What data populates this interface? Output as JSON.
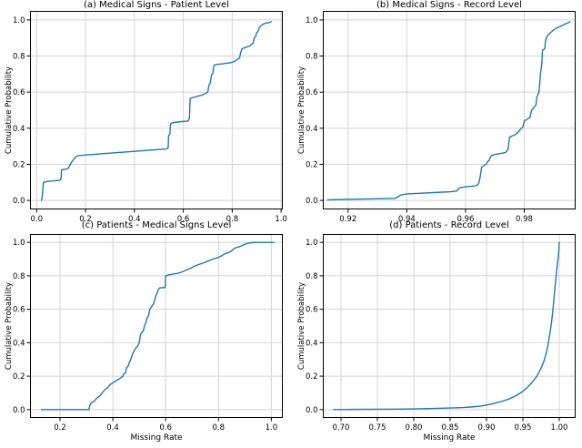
{
  "figure": {
    "background": "#ffffff",
    "line_color": "#1f77b4",
    "grid_color": "#d4d4d4",
    "spine_color": "#000000",
    "text_color": "#000000"
  },
  "chart_data": [
    {
      "id": "a",
      "type": "line",
      "title": "(a) Medical Signs - Patient Level",
      "xlabel": "",
      "ylabel": "Cumulative Probability",
      "grid": true,
      "legend": "none",
      "xlim": [
        -0.027,
        1.007
      ],
      "ylim": [
        -0.05,
        1.05
      ],
      "xtick_values": [
        0.0,
        0.2,
        0.4,
        0.6,
        0.8,
        1.0
      ],
      "xtick_labels": [
        "0.0",
        "0.2",
        "0.4",
        "0.6",
        "0.8",
        "1.0"
      ],
      "ytick_values": [
        0.0,
        0.2,
        0.4,
        0.6,
        0.8,
        1.0
      ],
      "ytick_labels": [
        "0.0",
        "0.2",
        "0.4",
        "0.6",
        "0.8",
        "1.0"
      ],
      "points": [
        [
          0.02,
          0.0
        ],
        [
          0.022,
          0.01
        ],
        [
          0.025,
          0.055
        ],
        [
          0.028,
          0.1
        ],
        [
          0.04,
          0.105
        ],
        [
          0.07,
          0.108
        ],
        [
          0.095,
          0.112
        ],
        [
          0.1,
          0.12
        ],
        [
          0.102,
          0.17
        ],
        [
          0.115,
          0.172
        ],
        [
          0.125,
          0.175
        ],
        [
          0.13,
          0.18
        ],
        [
          0.14,
          0.205
        ],
        [
          0.15,
          0.225
        ],
        [
          0.16,
          0.24
        ],
        [
          0.17,
          0.248
        ],
        [
          0.2,
          0.252
        ],
        [
          0.25,
          0.257
        ],
        [
          0.3,
          0.262
        ],
        [
          0.35,
          0.267
        ],
        [
          0.4,
          0.272
        ],
        [
          0.45,
          0.277
        ],
        [
          0.5,
          0.282
        ],
        [
          0.53,
          0.285
        ],
        [
          0.538,
          0.29
        ],
        [
          0.54,
          0.36
        ],
        [
          0.545,
          0.368
        ],
        [
          0.548,
          0.425
        ],
        [
          0.555,
          0.43
        ],
        [
          0.58,
          0.435
        ],
        [
          0.62,
          0.44
        ],
        [
          0.625,
          0.455
        ],
        [
          0.628,
          0.565
        ],
        [
          0.64,
          0.57
        ],
        [
          0.66,
          0.578
        ],
        [
          0.68,
          0.585
        ],
        [
          0.7,
          0.6
        ],
        [
          0.705,
          0.64
        ],
        [
          0.71,
          0.65
        ],
        [
          0.715,
          0.695
        ],
        [
          0.72,
          0.7
        ],
        [
          0.725,
          0.745
        ],
        [
          0.73,
          0.752
        ],
        [
          0.76,
          0.757
        ],
        [
          0.79,
          0.762
        ],
        [
          0.81,
          0.77
        ],
        [
          0.83,
          0.79
        ],
        [
          0.835,
          0.82
        ],
        [
          0.84,
          0.84
        ],
        [
          0.855,
          0.848
        ],
        [
          0.87,
          0.855
        ],
        [
          0.88,
          0.865
        ],
        [
          0.885,
          0.87
        ],
        [
          0.89,
          0.9
        ],
        [
          0.895,
          0.905
        ],
        [
          0.9,
          0.93
        ],
        [
          0.905,
          0.935
        ],
        [
          0.91,
          0.955
        ],
        [
          0.915,
          0.965
        ],
        [
          0.925,
          0.975
        ],
        [
          0.935,
          0.982
        ],
        [
          0.95,
          0.985
        ],
        [
          0.96,
          0.99
        ]
      ]
    },
    {
      "id": "b",
      "type": "line",
      "title": "(b) Medical Signs - Record Level",
      "xlabel": "",
      "ylabel": "Cumulative Probability",
      "grid": true,
      "legend": "none",
      "xlim": [
        0.9114,
        0.9975
      ],
      "ylim": [
        -0.05,
        1.05
      ],
      "xtick_values": [
        0.92,
        0.94,
        0.96,
        0.98
      ],
      "xtick_labels": [
        "0.92",
        "0.94",
        "0.96",
        "0.98"
      ],
      "ytick_values": [
        0.0,
        0.2,
        0.4,
        0.6,
        0.8,
        1.0
      ],
      "ytick_labels": [
        "0.0",
        "0.2",
        "0.4",
        "0.6",
        "0.8",
        "1.0"
      ],
      "points": [
        [
          0.913,
          0.003
        ],
        [
          0.92,
          0.006
        ],
        [
          0.93,
          0.009
        ],
        [
          0.936,
          0.011
        ],
        [
          0.938,
          0.03
        ],
        [
          0.94,
          0.036
        ],
        [
          0.945,
          0.04
        ],
        [
          0.95,
          0.044
        ],
        [
          0.955,
          0.048
        ],
        [
          0.957,
          0.052
        ],
        [
          0.958,
          0.07
        ],
        [
          0.96,
          0.075
        ],
        [
          0.963,
          0.08
        ],
        [
          0.964,
          0.085
        ],
        [
          0.9645,
          0.095
        ],
        [
          0.965,
          0.13
        ],
        [
          0.9655,
          0.185
        ],
        [
          0.966,
          0.19
        ],
        [
          0.967,
          0.2
        ],
        [
          0.9675,
          0.215
        ],
        [
          0.968,
          0.22
        ],
        [
          0.9685,
          0.24
        ],
        [
          0.969,
          0.25
        ],
        [
          0.97,
          0.255
        ],
        [
          0.972,
          0.26
        ],
        [
          0.9735,
          0.265
        ],
        [
          0.974,
          0.27
        ],
        [
          0.9745,
          0.285
        ],
        [
          0.975,
          0.35
        ],
        [
          0.976,
          0.358
        ],
        [
          0.977,
          0.365
        ],
        [
          0.978,
          0.38
        ],
        [
          0.9785,
          0.39
        ],
        [
          0.979,
          0.4
        ],
        [
          0.9795,
          0.405
        ],
        [
          0.98,
          0.44
        ],
        [
          0.981,
          0.45
        ],
        [
          0.982,
          0.46
        ],
        [
          0.9822,
          0.48
        ],
        [
          0.9825,
          0.5
        ],
        [
          0.983,
          0.51
        ],
        [
          0.9835,
          0.52
        ],
        [
          0.984,
          0.53
        ],
        [
          0.9843,
          0.575
        ],
        [
          0.9845,
          0.58
        ],
        [
          0.985,
          0.6
        ],
        [
          0.9851,
          0.62
        ],
        [
          0.9853,
          0.65
        ],
        [
          0.9855,
          0.7
        ],
        [
          0.9857,
          0.72
        ],
        [
          0.986,
          0.76
        ],
        [
          0.9862,
          0.83
        ],
        [
          0.9865,
          0.835
        ],
        [
          0.987,
          0.84
        ],
        [
          0.9872,
          0.88
        ],
        [
          0.9875,
          0.9
        ],
        [
          0.988,
          0.915
        ],
        [
          0.989,
          0.93
        ],
        [
          0.99,
          0.945
        ],
        [
          0.991,
          0.955
        ],
        [
          0.992,
          0.962
        ],
        [
          0.993,
          0.97
        ],
        [
          0.994,
          0.978
        ],
        [
          0.995,
          0.985
        ],
        [
          0.9955,
          0.99
        ]
      ]
    },
    {
      "id": "c",
      "type": "line",
      "title": "(c) Patients - Medical Signs Level",
      "xlabel": "Missing Rate",
      "ylabel": "Cumulative Probability",
      "grid": true,
      "legend": "none",
      "xlim": [
        0.0865,
        1.0435
      ],
      "ylim": [
        -0.05,
        1.05
      ],
      "xtick_values": [
        0.2,
        0.4,
        0.6,
        0.8,
        1.0
      ],
      "xtick_labels": [
        "0.2",
        "0.4",
        "0.6",
        "0.8",
        "1.0"
      ],
      "ytick_values": [
        0.0,
        0.2,
        0.4,
        0.6,
        0.8,
        1.0
      ],
      "ytick_labels": [
        "0.0",
        "0.2",
        "0.4",
        "0.6",
        "0.8",
        "1.0"
      ],
      "points": [
        [
          0.13,
          0.0
        ],
        [
          0.31,
          0.0
        ],
        [
          0.312,
          0.02
        ],
        [
          0.318,
          0.04
        ],
        [
          0.33,
          0.05
        ],
        [
          0.34,
          0.07
        ],
        [
          0.35,
          0.08
        ],
        [
          0.36,
          0.1
        ],
        [
          0.37,
          0.12
        ],
        [
          0.38,
          0.13
        ],
        [
          0.39,
          0.15
        ],
        [
          0.4,
          0.16
        ],
        [
          0.41,
          0.17
        ],
        [
          0.42,
          0.18
        ],
        [
          0.43,
          0.19
        ],
        [
          0.438,
          0.2
        ],
        [
          0.442,
          0.215
        ],
        [
          0.448,
          0.22
        ],
        [
          0.452,
          0.25
        ],
        [
          0.458,
          0.26
        ],
        [
          0.462,
          0.28
        ],
        [
          0.468,
          0.3
        ],
        [
          0.474,
          0.33
        ],
        [
          0.48,
          0.35
        ],
        [
          0.488,
          0.37
        ],
        [
          0.494,
          0.38
        ],
        [
          0.5,
          0.4
        ],
        [
          0.505,
          0.45
        ],
        [
          0.51,
          0.46
        ],
        [
          0.515,
          0.47
        ],
        [
          0.52,
          0.5
        ],
        [
          0.525,
          0.52
        ],
        [
          0.53,
          0.55
        ],
        [
          0.535,
          0.56
        ],
        [
          0.54,
          0.6
        ],
        [
          0.548,
          0.62
        ],
        [
          0.553,
          0.63
        ],
        [
          0.558,
          0.65
        ],
        [
          0.563,
          0.68
        ],
        [
          0.568,
          0.7
        ],
        [
          0.573,
          0.72
        ],
        [
          0.578,
          0.728
        ],
        [
          0.598,
          0.73
        ],
        [
          0.6,
          0.8
        ],
        [
          0.61,
          0.805
        ],
        [
          0.625,
          0.81
        ],
        [
          0.645,
          0.815
        ],
        [
          0.66,
          0.822
        ],
        [
          0.672,
          0.83
        ],
        [
          0.683,
          0.838
        ],
        [
          0.695,
          0.845
        ],
        [
          0.705,
          0.855
        ],
        [
          0.715,
          0.862
        ],
        [
          0.725,
          0.868
        ],
        [
          0.74,
          0.875
        ],
        [
          0.755,
          0.885
        ],
        [
          0.77,
          0.895
        ],
        [
          0.785,
          0.903
        ],
        [
          0.8,
          0.91
        ],
        [
          0.812,
          0.92
        ],
        [
          0.822,
          0.93
        ],
        [
          0.832,
          0.936
        ],
        [
          0.842,
          0.942
        ],
        [
          0.85,
          0.95
        ],
        [
          0.856,
          0.96
        ],
        [
          0.865,
          0.968
        ],
        [
          0.875,
          0.972
        ],
        [
          0.885,
          0.978
        ],
        [
          0.895,
          0.985
        ],
        [
          0.905,
          0.992
        ],
        [
          0.915,
          0.996
        ],
        [
          0.93,
          0.999
        ],
        [
          0.95,
          1.0
        ],
        [
          1.01,
          1.0
        ]
      ]
    },
    {
      "id": "d",
      "type": "line",
      "title": "(d) Patients - Record Level",
      "xlabel": "Missing Rate",
      "ylabel": "Cumulative Probability",
      "grid": true,
      "legend": "none",
      "xlim": [
        0.675,
        1.0225
      ],
      "ylim": [
        -0.05,
        1.05
      ],
      "xtick_values": [
        0.7,
        0.75,
        0.8,
        0.85,
        0.9,
        0.95,
        1.0
      ],
      "xtick_labels": [
        "0.70",
        "0.75",
        "0.80",
        "0.85",
        "0.90",
        "0.95",
        "1.00"
      ],
      "ytick_values": [
        0.0,
        0.2,
        0.4,
        0.6,
        0.8,
        1.0
      ],
      "ytick_labels": [
        "0.0",
        "0.2",
        "0.4",
        "0.6",
        "0.8",
        "1.0"
      ],
      "points": [
        [
          0.69,
          0.0
        ],
        [
          0.72,
          0.001
        ],
        [
          0.75,
          0.002
        ],
        [
          0.78,
          0.003
        ],
        [
          0.8,
          0.004
        ],
        [
          0.82,
          0.006
        ],
        [
          0.84,
          0.008
        ],
        [
          0.855,
          0.01
        ],
        [
          0.87,
          0.013
        ],
        [
          0.88,
          0.016
        ],
        [
          0.89,
          0.02
        ],
        [
          0.9,
          0.027
        ],
        [
          0.91,
          0.036
        ],
        [
          0.92,
          0.048
        ],
        [
          0.93,
          0.062
        ],
        [
          0.94,
          0.082
        ],
        [
          0.945,
          0.095
        ],
        [
          0.95,
          0.11
        ],
        [
          0.955,
          0.128
        ],
        [
          0.96,
          0.15
        ],
        [
          0.965,
          0.175
        ],
        [
          0.97,
          0.205
        ],
        [
          0.973,
          0.23
        ],
        [
          0.976,
          0.258
        ],
        [
          0.979,
          0.29
        ],
        [
          0.981,
          0.32
        ],
        [
          0.983,
          0.355
        ],
        [
          0.985,
          0.4
        ],
        [
          0.987,
          0.45
        ],
        [
          0.989,
          0.51
        ],
        [
          0.99,
          0.545
        ],
        [
          0.991,
          0.585
        ],
        [
          0.992,
          0.63
        ],
        [
          0.993,
          0.68
        ],
        [
          0.994,
          0.725
        ],
        [
          0.995,
          0.77
        ],
        [
          0.996,
          0.815
        ],
        [
          0.997,
          0.855
        ],
        [
          0.9975,
          0.875
        ],
        [
          0.998,
          0.893
        ],
        [
          0.9985,
          0.905
        ],
        [
          0.999,
          0.93
        ],
        [
          0.9995,
          0.96
        ],
        [
          1.0,
          1.0
        ]
      ]
    }
  ]
}
